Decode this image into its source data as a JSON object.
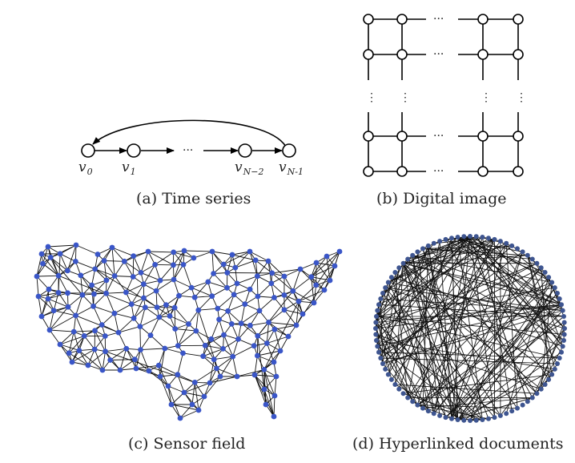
{
  "panels": {
    "time_series": {
      "caption": "(a)  Time series",
      "labels": [
        {
          "base": "v",
          "sub": "0"
        },
        {
          "base": "v",
          "sub": "1"
        },
        {
          "base": "v",
          "sub": "N−2"
        },
        {
          "base": "v",
          "sub": "N-1"
        }
      ],
      "ellipsis": "···"
    },
    "digital_image": {
      "caption": "(b)  Digital image",
      "h_ellipsis": "···",
      "v_ellipsis": "⋮"
    },
    "sensor_field": {
      "caption": "(c)  Sensor field"
    },
    "hyperlinked": {
      "caption": "(d)  Hyperlinked documents"
    }
  },
  "colors": {
    "ink": "#000000",
    "sensor_node": "#3a56c8",
    "doc_node": "#3e5590"
  }
}
